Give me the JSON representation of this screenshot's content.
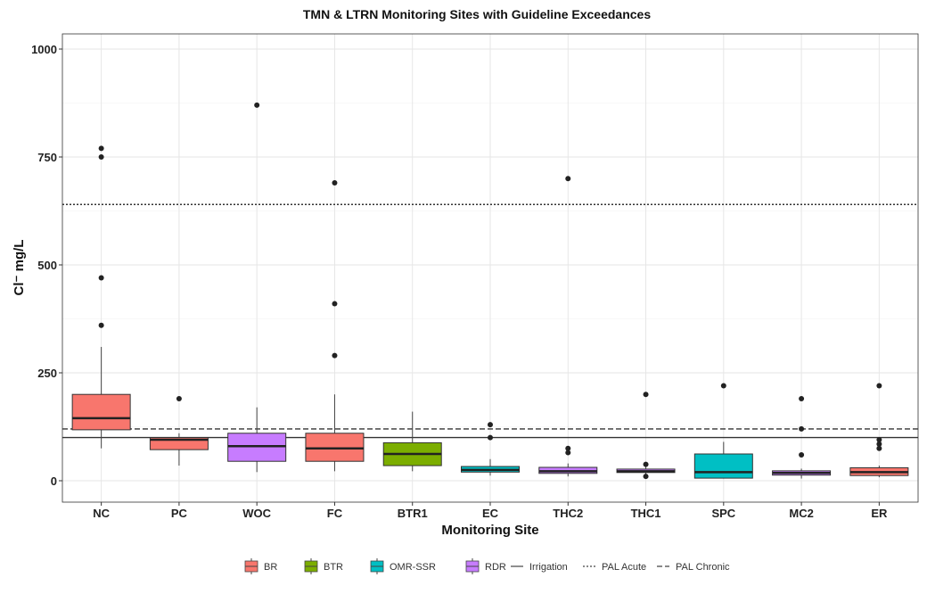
{
  "chart_data": {
    "type": "boxplot",
    "title": "TMN & LTRN Monitoring Sites with Guideline Exceedances",
    "xlabel": "Monitoring Site",
    "ylabel": "Cl⁻ mg/L",
    "ylim": [
      -50,
      1030
    ],
    "yticks": [
      0,
      250,
      500,
      750,
      1000
    ],
    "grid": true,
    "legend_position": "bottom",
    "groups": [
      {
        "name": "BR",
        "color": "#F8766D"
      },
      {
        "name": "BTR",
        "color": "#7CAE00"
      },
      {
        "name": "OMR-SSR",
        "color": "#00BFC4"
      },
      {
        "name": "RDR",
        "color": "#C77CFF"
      }
    ],
    "guidelines": [
      {
        "name": "Irrigation",
        "value": 100,
        "style": "solid"
      },
      {
        "name": "PAL Acute",
        "value": 640,
        "style": "dotted"
      },
      {
        "name": "PAL Chronic",
        "value": 120,
        "style": "dashed"
      }
    ],
    "sites": [
      {
        "name": "NC",
        "group": "BR",
        "min": 75,
        "q1": 118,
        "median": 145,
        "q3": 200,
        "max": 310,
        "outliers": [
          770,
          750,
          470,
          360
        ]
      },
      {
        "name": "PC",
        "group": "BR",
        "min": 35,
        "q1": 72,
        "median": 95,
        "q3": 100,
        "max": 110,
        "outliers": [
          190
        ]
      },
      {
        "name": "WOC",
        "group": "RDR",
        "min": 20,
        "q1": 45,
        "median": 80,
        "q3": 110,
        "max": 170,
        "outliers": [
          870
        ]
      },
      {
        "name": "FC",
        "group": "BR",
        "min": 22,
        "q1": 45,
        "median": 75,
        "q3": 110,
        "max": 200,
        "outliers": [
          690,
          410,
          290
        ]
      },
      {
        "name": "BTR1",
        "group": "BTR",
        "min": 22,
        "q1": 35,
        "median": 62,
        "q3": 88,
        "max": 160,
        "outliers": []
      },
      {
        "name": "EC",
        "group": "OMR-SSR",
        "min": 12,
        "q1": 20,
        "median": 25,
        "q3": 33,
        "max": 50,
        "outliers": [
          130,
          100
        ]
      },
      {
        "name": "THC2",
        "group": "RDR",
        "min": 10,
        "q1": 17,
        "median": 22,
        "q3": 31,
        "max": 40,
        "outliers": [
          700,
          75,
          65
        ]
      },
      {
        "name": "THC1",
        "group": "RDR",
        "min": 15,
        "q1": 19,
        "median": 22,
        "q3": 27,
        "max": 32,
        "outliers": [
          200,
          38,
          10
        ]
      },
      {
        "name": "SPC",
        "group": "OMR-SSR",
        "min": 5,
        "q1": 6,
        "median": 20,
        "q3": 62,
        "max": 90,
        "outliers": [
          220
        ]
      },
      {
        "name": "MC2",
        "group": "RDR",
        "min": 5,
        "q1": 13,
        "median": 18,
        "q3": 23,
        "max": 28,
        "outliers": [
          190,
          120,
          60
        ]
      },
      {
        "name": "ER",
        "group": "BR",
        "min": 8,
        "q1": 12,
        "median": 20,
        "q3": 30,
        "max": 35,
        "outliers": [
          220,
          95,
          85,
          75
        ]
      }
    ]
  }
}
